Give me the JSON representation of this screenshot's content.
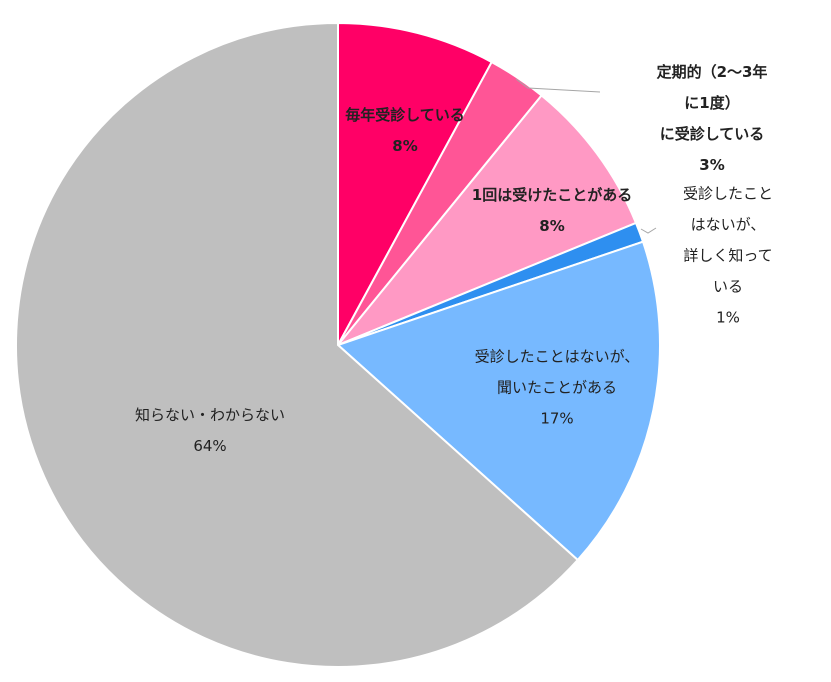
{
  "chart_data": {
    "type": "pie",
    "categories": [
      "毎年受診している",
      "定期的（2〜3年に1度）\nに受診している",
      "1回は受けたことがある",
      "受診したことはないが、\n詳しく知っている",
      "受診したことはないが、\n聞いたことがある",
      "知らない・わからない"
    ],
    "values": [
      8,
      3,
      8,
      1,
      17,
      64
    ],
    "value_labels": [
      "8%",
      "3%",
      "8%",
      "1%",
      "17%",
      "64%"
    ],
    "colors": [
      "#ff0066",
      "#ff5596",
      "#ff99c4",
      "#2e8ff0",
      "#77b9ff",
      "#bfbfbf"
    ]
  }
}
